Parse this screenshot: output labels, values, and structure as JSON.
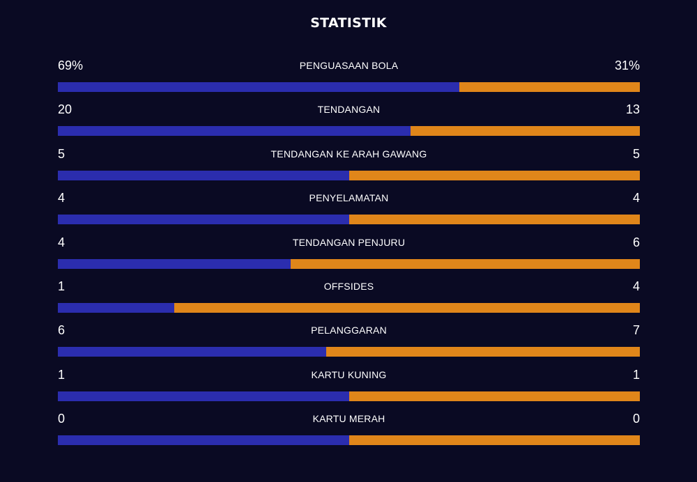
{
  "title": "STATISTIK",
  "colors": {
    "background": "#0a0a23",
    "home": "#2b2dae",
    "away": "#e0861a"
  },
  "stats": [
    {
      "label": "PENGUASAAN BOLA",
      "home": "69%",
      "away": "31%",
      "home_value": 69,
      "away_value": 31
    },
    {
      "label": "TENDANGAN",
      "home": "20",
      "away": "13",
      "home_value": 20,
      "away_value": 13
    },
    {
      "label": "TENDANGAN KE ARAH GAWANG",
      "home": "5",
      "away": "5",
      "home_value": 5,
      "away_value": 5
    },
    {
      "label": "PENYELAMATAN",
      "home": "4",
      "away": "4",
      "home_value": 4,
      "away_value": 4
    },
    {
      "label": "TENDANGAN PENJURU",
      "home": "4",
      "away": "6",
      "home_value": 4,
      "away_value": 6
    },
    {
      "label": "OFFSIDES",
      "home": "1",
      "away": "4",
      "home_value": 1,
      "away_value": 4
    },
    {
      "label": "PELANGGARAN",
      "home": "6",
      "away": "7",
      "home_value": 6,
      "away_value": 7
    },
    {
      "label": "KARTU KUNING",
      "home": "1",
      "away": "1",
      "home_value": 1,
      "away_value": 1
    },
    {
      "label": "KARTU MERAH",
      "home": "0",
      "away": "0",
      "home_value": 0,
      "away_value": 0
    }
  ]
}
